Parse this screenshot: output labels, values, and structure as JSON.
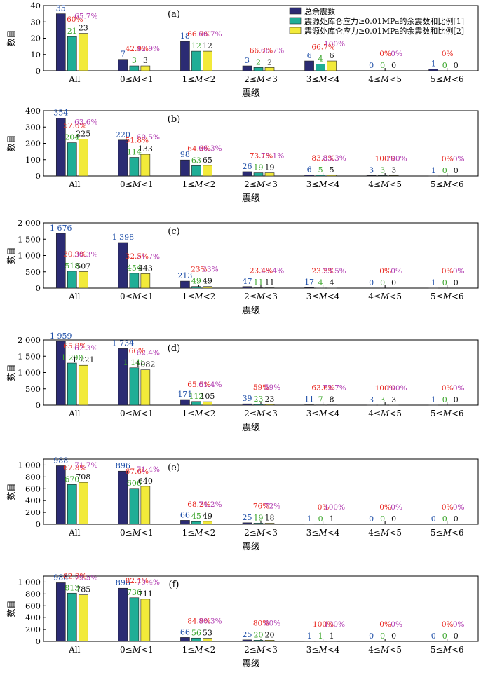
{
  "legend": {
    "items": [
      {
        "label": "总余震数",
        "color": "#2b2b73"
      },
      {
        "label": "震源处库仑应力≥0.01MPa的余震数和比例[1]",
        "color": "#1fae96"
      },
      {
        "label": "震源处库仑应力≥0.01MPa的余震数和比例[2]",
        "color": "#f2ea3a"
      }
    ]
  },
  "colors": {
    "bar_total": "#2b2b73",
    "bar_m1": "#1fae96",
    "bar_m2": "#f2ea3a",
    "label_total": "#1f4fa8",
    "label_m1": "#3aa52a",
    "label_m2": "#111111",
    "pct_m1": "#e8261e",
    "pct_m2": "#b03bb0"
  },
  "chart_data": [
    {
      "type": "bar",
      "panel": "(a)",
      "categories": [
        "All",
        "0≤M<1",
        "1≤M<2",
        "2≤M<3",
        "3≤M<4",
        "4≤M<5",
        "5≤M<6"
      ],
      "xlabel": "震级",
      "ylabel": "数目",
      "ylim": [
        0,
        40
      ],
      "yticks": [
        0,
        10,
        20,
        30,
        40
      ],
      "ytick_labels": [
        "0",
        "10",
        "20",
        "30",
        "40"
      ],
      "series": [
        {
          "name": "总余震数",
          "values": [
            35,
            7,
            18,
            3,
            6,
            0,
            1
          ],
          "labels": [
            "35",
            "7",
            "18",
            "3",
            "6",
            "0",
            "1"
          ]
        },
        {
          "name": "震源处库仑应力≥0.01MPa的余震数和比例[1]",
          "values": [
            21,
            3,
            12,
            2,
            4,
            0,
            0
          ],
          "labels": [
            "21",
            "3",
            "12",
            "2",
            "4",
            "0",
            "0"
          ],
          "percent_labels": [
            "60%",
            "42.9%",
            "66.7%",
            "66.7%",
            "66.7%",
            "0%",
            "0%"
          ]
        },
        {
          "name": "震源处库仑应力≥0.01MPa的余震数和比例[2]",
          "values": [
            23,
            3,
            12,
            2,
            6,
            0,
            0
          ],
          "labels": [
            "23",
            "3",
            "12",
            "2",
            "6",
            "0",
            "0"
          ],
          "percent_labels": [
            "65.7%",
            "42.9%",
            "66.7%",
            "66.7%",
            "100%",
            "0%",
            ""
          ]
        }
      ]
    },
    {
      "type": "bar",
      "panel": "(b)",
      "categories": [
        "All",
        "0≤M<1",
        "1≤M<2",
        "2≤M<3",
        "3≤M<4",
        "4≤M<5",
        "5≤M<6"
      ],
      "xlabel": "震级",
      "ylabel": "数目",
      "ylim": [
        0,
        400
      ],
      "yticks": [
        0,
        100,
        200,
        300,
        400
      ],
      "ytick_labels": [
        "0",
        "100",
        "200",
        "300",
        "400"
      ],
      "series": [
        {
          "name": "总余震数",
          "values": [
            354,
            220,
            98,
            26,
            6,
            3,
            1
          ],
          "labels": [
            "354",
            "220",
            "98",
            "26",
            "6",
            "3",
            "1"
          ]
        },
        {
          "name": "震源处库仑应力≥0.01MPa的余震数和比例[1]",
          "values": [
            204,
            114,
            63,
            19,
            5,
            3,
            0
          ],
          "labels": [
            "204",
            "114",
            "63",
            "19",
            "5",
            "3",
            "0"
          ],
          "percent_labels": [
            "57.6%",
            "51.8%",
            "64.3%",
            "73.1%",
            "83.3%",
            "100%",
            "0%"
          ]
        },
        {
          "name": "震源处库仑应力≥0.01MPa的余震数和比例[2]",
          "values": [
            225,
            133,
            65,
            19,
            5,
            3,
            0
          ],
          "labels": [
            "225",
            "133",
            "65",
            "19",
            "5",
            "3",
            "0"
          ],
          "percent_labels": [
            "63.6%",
            "60.5%",
            "66.3%",
            "73.1%",
            "83.3%",
            "100%",
            "0%"
          ]
        }
      ]
    },
    {
      "type": "bar",
      "panel": "(c)",
      "categories": [
        "All",
        "0≤M<1",
        "1≤M<2",
        "2≤M<3",
        "3≤M<4",
        "4≤M<5",
        "5≤M<6"
      ],
      "xlabel": "震级",
      "ylabel": "数目",
      "ylim": [
        0,
        2000
      ],
      "yticks": [
        0,
        500,
        1000,
        1500,
        2000
      ],
      "ytick_labels": [
        "0",
        "500",
        "1 000",
        "1 500",
        "2 000"
      ],
      "series": [
        {
          "name": "总余震数",
          "values": [
            1676,
            1398,
            213,
            47,
            17,
            0,
            1
          ],
          "labels": [
            "1 676",
            "1 398",
            "213",
            "47",
            "17",
            "0",
            "1"
          ]
        },
        {
          "name": "震源处库仑应力≥0.01MPa的余震数和比例[1]",
          "values": [
            518,
            454,
            49,
            11,
            4,
            0,
            0
          ],
          "labels": [
            "518",
            "454",
            "49",
            "11",
            "4",
            "0",
            "0"
          ],
          "percent_labels": [
            "30.9%",
            "32.5%",
            "23%",
            "23.4%",
            "23.5%",
            "0%",
            "0%"
          ]
        },
        {
          "name": "震源处库仑应力≥0.01MPa的余震数和比例[2]",
          "values": [
            507,
            443,
            49,
            11,
            4,
            0,
            0
          ],
          "labels": [
            "507",
            "443",
            "49",
            "11",
            "4",
            "0",
            "0"
          ],
          "percent_labels": [
            "30.3%",
            "31.7%",
            "23%",
            "23.4%",
            "23.5%",
            "0%",
            "0%"
          ]
        }
      ]
    },
    {
      "type": "bar",
      "panel": "(d)",
      "categories": [
        "All",
        "0≤M<1",
        "1≤M<2",
        "2≤M<3",
        "3≤M<4",
        "4≤M<5",
        "5≤M<6"
      ],
      "xlabel": "震级",
      "ylabel": "数目",
      "ylim": [
        0,
        2000
      ],
      "yticks": [
        0,
        500,
        1000,
        1500,
        2000
      ],
      "ytick_labels": [
        "0",
        "500",
        "1 000",
        "1 500",
        "2 000"
      ],
      "series": [
        {
          "name": "总余震数",
          "values": [
            1959,
            1734,
            171,
            39,
            11,
            3,
            1
          ],
          "labels": [
            "1 959",
            "1 734",
            "171",
            "39",
            "11",
            "3",
            "1"
          ]
        },
        {
          "name": "震源处库仑应力≥0.01MPa的余震数和比例[1]",
          "values": [
            1290,
            1145,
            112,
            23,
            7,
            3,
            0
          ],
          "labels": [
            "1 290",
            "1 145",
            "112",
            "23",
            "7",
            "3",
            "0"
          ],
          "percent_labels": [
            "65.9%",
            "66%",
            "65.5%",
            "59%",
            "63.6%",
            "100%",
            "0%"
          ]
        },
        {
          "name": "震源处库仑应力≥0.01MPa的余震数和比例[2]",
          "values": [
            1221,
            1082,
            105,
            23,
            8,
            3,
            0
          ],
          "labels": [
            "1 221",
            "1082",
            "105",
            "23",
            "8",
            "3",
            "0"
          ],
          "percent_labels": [
            "62.3%",
            "62.4%",
            "61.4%",
            "59%",
            "72.7%",
            "100%",
            "0%"
          ]
        }
      ]
    },
    {
      "type": "bar",
      "panel": "(e)",
      "categories": [
        "All",
        "0≤M<1",
        "1≤M<2",
        "2≤M<3",
        "3≤M<4",
        "4≤M<5",
        "5≤M<6"
      ],
      "xlabel": "震级",
      "ylabel": "数目",
      "ylim": [
        0,
        1100
      ],
      "yticks": [
        0,
        200,
        400,
        600,
        800,
        1000
      ],
      "ytick_labels": [
        "0",
        "200",
        "400",
        "600",
        "800",
        "1 000"
      ],
      "series": [
        {
          "name": "总余震数",
          "values": [
            988,
            896,
            66,
            25,
            1,
            0,
            0
          ],
          "labels": [
            "988",
            "896",
            "66",
            "25",
            "1",
            "0",
            "0"
          ]
        },
        {
          "name": "震源处库仑应力≥0.01MPa的余震数和比例[1]",
          "values": [
            670,
            606,
            45,
            19,
            0,
            0,
            0
          ],
          "labels": [
            "670",
            "606",
            "45",
            "19",
            "0",
            "0",
            "0"
          ],
          "percent_labels": [
            "67.8%",
            "67.6%",
            "68.2%",
            "76%",
            "0%",
            "0%",
            "0%"
          ]
        },
        {
          "name": "震源处库仑应力≥0.01MPa的余震数和比例[2]",
          "values": [
            708,
            640,
            49,
            18,
            1,
            0,
            0
          ],
          "labels": [
            "708",
            "640",
            "49",
            "18",
            "1",
            "0",
            "0"
          ],
          "percent_labels": [
            "71.7%",
            "71.4%",
            "74.2%",
            "72%",
            "100%",
            "0%",
            "0%"
          ]
        }
      ]
    },
    {
      "type": "bar",
      "panel": "(f)",
      "categories": [
        "All",
        "0≤M<1",
        "1≤M<2",
        "2≤M<3",
        "3≤M<4",
        "4≤M<5",
        "5≤M<6"
      ],
      "xlabel": "震级",
      "ylabel": "数目",
      "ylim": [
        0,
        1100
      ],
      "yticks": [
        0,
        200,
        400,
        600,
        800,
        1000
      ],
      "ytick_labels": [
        "0",
        "200",
        "400",
        "600",
        "800",
        "1 000"
      ],
      "series": [
        {
          "name": "总余震数",
          "values": [
            988,
            896,
            66,
            25,
            1,
            0,
            0
          ],
          "labels": [
            "988",
            "896",
            "66",
            "25",
            "1",
            "0",
            "0"
          ]
        },
        {
          "name": "震源处库仑应力≥0.01MPa的余震数和比例[1]",
          "values": [
            813,
            736,
            56,
            20,
            1,
            0,
            0
          ],
          "labels": [
            "813",
            "736",
            "56",
            "20",
            "1",
            "0",
            "0"
          ],
          "percent_labels": [
            "82.3%",
            "82.1%",
            "84.9%",
            "80%",
            "100%",
            "0%",
            "0%"
          ]
        },
        {
          "name": "震源处库仑应力≥0.01MPa的余震数和比例[2]",
          "values": [
            785,
            711,
            53,
            20,
            1,
            0,
            0
          ],
          "labels": [
            "785",
            "711",
            "53",
            "20",
            "1",
            "0",
            "0"
          ],
          "percent_labels": [
            "79.5%",
            "79.4%",
            "80.3%",
            "80%",
            "100%",
            "0%",
            "0%"
          ]
        }
      ]
    }
  ]
}
